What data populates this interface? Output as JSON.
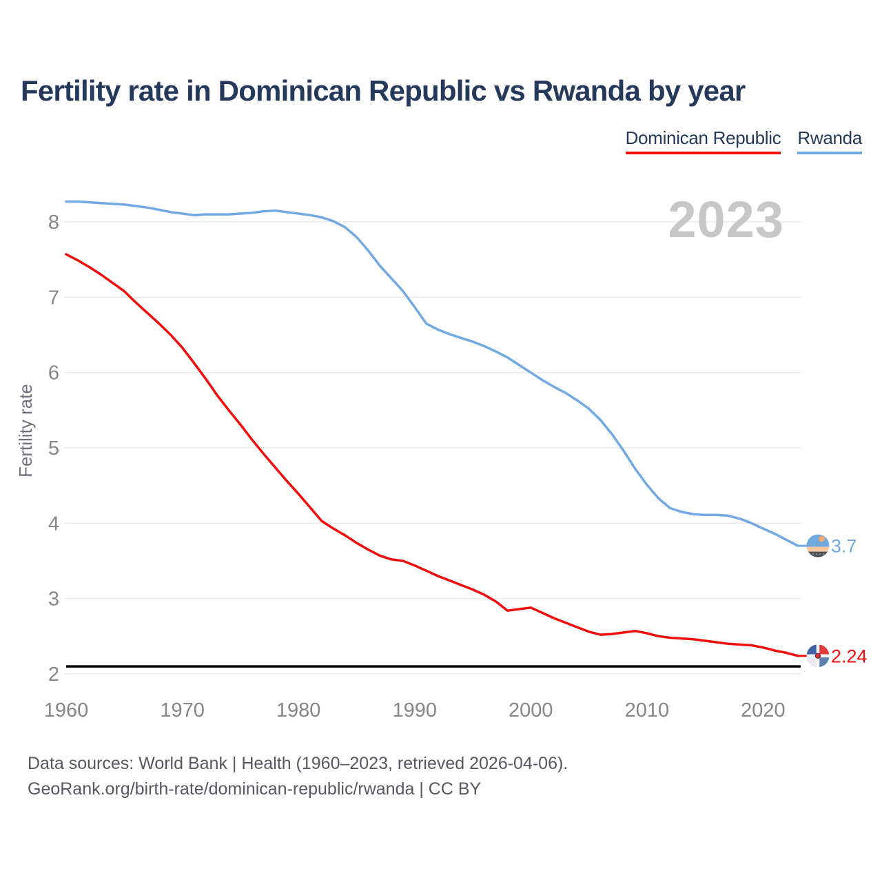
{
  "title": "Fertility rate in Dominican Republic vs Rwanda by year",
  "watermark": "2023",
  "legend": [
    {
      "id": "dominican-republic",
      "label": "Dominican Republic",
      "color": "#f20d0d"
    },
    {
      "id": "rwanda",
      "label": "Rwanda",
      "color": "#72a9e3"
    }
  ],
  "y_axis": {
    "label": "Fertility rate",
    "ticks": [
      8,
      7,
      6,
      5,
      4,
      3,
      2
    ],
    "min": 2,
    "max": 8
  },
  "x_axis": {
    "ticks": [
      1960,
      1970,
      1980,
      1990,
      2000,
      2010,
      2020
    ],
    "min": 1960,
    "max": 2023
  },
  "reference_line": {
    "value": 2.1,
    "color": "#000000"
  },
  "end_labels": {
    "rwanda": "3.7",
    "dominican_republic": "2.24"
  },
  "footer": {
    "line1": "Data sources: World Bank | Health (1960–2023, retrieved 2026-04-06).",
    "line2": "GeoRank.org/birth-rate/dominican-republic/rwanda | CC BY"
  },
  "chart_data": {
    "type": "line",
    "title": "Fertility rate in Dominican Republic vs Rwanda by year",
    "xlabel": "",
    "ylabel": "Fertility rate",
    "ylim": [
      2,
      8
    ],
    "xlim": [
      1960,
      2023
    ],
    "grid": "horizontal",
    "legend_position": "top-right",
    "x": [
      1960,
      1961,
      1962,
      1963,
      1964,
      1965,
      1966,
      1967,
      1968,
      1969,
      1970,
      1971,
      1972,
      1973,
      1974,
      1975,
      1976,
      1977,
      1978,
      1979,
      1980,
      1981,
      1982,
      1983,
      1984,
      1985,
      1986,
      1987,
      1988,
      1989,
      1990,
      1991,
      1992,
      1993,
      1994,
      1995,
      1996,
      1997,
      1998,
      1999,
      2000,
      2001,
      2002,
      2003,
      2004,
      2005,
      2006,
      2007,
      2008,
      2009,
      2010,
      2011,
      2012,
      2013,
      2014,
      2015,
      2016,
      2017,
      2018,
      2019,
      2020,
      2021,
      2022,
      2023
    ],
    "series": [
      {
        "name": "Dominican Republic",
        "color": "#f20d0d",
        "values": [
          7.57,
          7.49,
          7.4,
          7.3,
          7.19,
          7.08,
          6.93,
          6.79,
          6.65,
          6.5,
          6.33,
          6.13,
          5.92,
          5.7,
          5.5,
          5.31,
          5.11,
          4.92,
          4.74,
          4.56,
          4.39,
          4.21,
          4.03,
          3.93,
          3.84,
          3.74,
          3.65,
          3.57,
          3.52,
          3.5,
          3.44,
          3.37,
          3.3,
          3.24,
          3.18,
          3.12,
          3.05,
          2.96,
          2.84,
          2.86,
          2.88,
          2.81,
          2.74,
          2.68,
          2.62,
          2.56,
          2.52,
          2.53,
          2.55,
          2.57,
          2.54,
          2.5,
          2.48,
          2.47,
          2.46,
          2.44,
          2.42,
          2.4,
          2.39,
          2.38,
          2.35,
          2.31,
          2.28,
          2.24
        ]
      },
      {
        "name": "Rwanda",
        "color": "#72a9e3",
        "values": [
          8.27,
          8.27,
          8.26,
          8.25,
          8.24,
          8.23,
          8.21,
          8.19,
          8.16,
          8.13,
          8.11,
          8.09,
          8.1,
          8.1,
          8.1,
          8.11,
          8.12,
          8.14,
          8.15,
          8.13,
          8.11,
          8.09,
          8.06,
          8.01,
          7.93,
          7.8,
          7.62,
          7.42,
          7.25,
          7.08,
          6.87,
          6.65,
          6.57,
          6.51,
          6.46,
          6.41,
          6.35,
          6.28,
          6.2,
          6.1,
          6.0,
          5.9,
          5.81,
          5.73,
          5.63,
          5.52,
          5.37,
          5.18,
          4.96,
          4.72,
          4.51,
          4.33,
          4.2,
          4.15,
          4.12,
          4.11,
          4.11,
          4.1,
          4.06,
          4.0,
          3.93,
          3.86,
          3.78,
          3.7
        ]
      }
    ],
    "reference_line_value": 2.1
  }
}
